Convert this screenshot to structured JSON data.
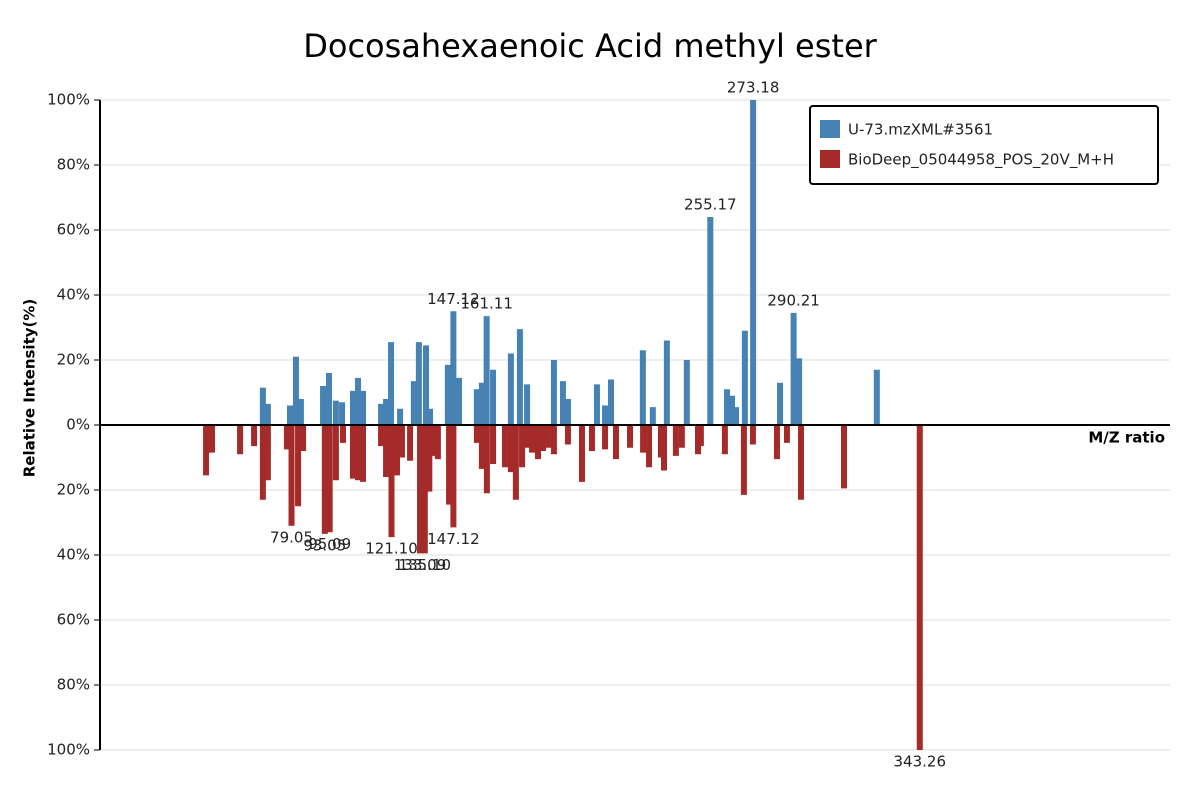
{
  "chart_data": {
    "type": "mirror_bar",
    "title": "Docosahexaenoic Acid methyl ester",
    "y_label": "Relative Intensity(%)",
    "x_label": "M/Z ratio",
    "xlim": [
      -1.5,
      448.5
    ],
    "ylim": [
      -100,
      100
    ],
    "yticks": [
      {
        "value": 100,
        "label": "100%"
      },
      {
        "value": 80,
        "label": "80%"
      },
      {
        "value": 60,
        "label": "60%"
      },
      {
        "value": 40,
        "label": "40%"
      },
      {
        "value": 20,
        "label": "20%"
      },
      {
        "value": 0,
        "label": "0%"
      },
      {
        "value": -20,
        "label": "20%"
      },
      {
        "value": -40,
        "label": "40%"
      },
      {
        "value": -60,
        "label": "60%"
      },
      {
        "value": -80,
        "label": "80%"
      },
      {
        "value": -100,
        "label": "100%"
      }
    ],
    "grid": true,
    "legend": "top-right",
    "series": [
      {
        "name": "U-73.mzXML#3561",
        "color": "#4682b4",
        "direction": "up",
        "x": [
          67.0,
          69.1,
          78.4,
          80.9,
          83.0,
          92.3,
          94.8,
          97.7,
          100.3,
          104.9,
          107.0,
          109.1,
          116.7,
          118.8,
          120.9,
          124.7,
          130.5,
          132.6,
          135.6,
          137.3,
          144.8,
          147.12,
          149.5,
          157.0,
          159.1,
          161.11,
          163.8,
          171.3,
          175.1,
          178.1,
          189.4,
          193.2,
          195.3,
          207.5,
          210.9,
          213.4,
          226.8,
          231.0,
          236.9,
          245.3,
          255.17,
          262.2,
          264.3,
          266.0,
          269.7,
          273.18,
          284.5,
          290.21,
          292.5,
          325.2
        ],
        "values": [
          11.5,
          6.5,
          6,
          21,
          8,
          12,
          16,
          7.5,
          7,
          10.5,
          14.5,
          10.5,
          6.5,
          8,
          25.5,
          5,
          13.5,
          25.5,
          24.5,
          5,
          18.5,
          35,
          14.5,
          11,
          13,
          33.5,
          17,
          22,
          29.5,
          12.5,
          20,
          13.5,
          8,
          12.5,
          6,
          14,
          23,
          5.5,
          26,
          20,
          64,
          11,
          9,
          5.5,
          29,
          100,
          13,
          34.5,
          20.5,
          17
        ],
        "x_labels": [
          null,
          null,
          null,
          null,
          null,
          null,
          null,
          null,
          null,
          null,
          null,
          null,
          null,
          null,
          null,
          null,
          null,
          null,
          null,
          null,
          null,
          "147.12",
          null,
          null,
          null,
          "161.11",
          null,
          null,
          null,
          null,
          null,
          null,
          null,
          null,
          null,
          null,
          null,
          null,
          null,
          null,
          "255.17",
          null,
          null,
          null,
          null,
          "273.18",
          null,
          "290.21",
          null,
          null
        ]
      },
      {
        "name": "BioDeep_05044958_POS_20V_M+H",
        "color": "#a52a2a",
        "direction": "down",
        "x": [
          43.1,
          45.6,
          57.4,
          63.3,
          67.0,
          69.1,
          77.1,
          79.05,
          81.8,
          83.9,
          93.05,
          94.1,
          95.09,
          97.7,
          100.7,
          104.9,
          107.0,
          109.1,
          116.7,
          118.8,
          121.1,
          123.4,
          125.5,
          128.9,
          133.09,
          135.1,
          137.0,
          138.5,
          140.6,
          145.3,
          147.12,
          157.0,
          159.1,
          161.2,
          163.8,
          168.8,
          171.3,
          173.4,
          176.0,
          178.1,
          180.2,
          182.7,
          184.8,
          186.9,
          189.4,
          195.3,
          201.2,
          205.4,
          210.9,
          215.5,
          221.4,
          226.9,
          229.4,
          234.4,
          235.7,
          240.7,
          243.2,
          250.0,
          251.2,
          261.3,
          269.3,
          273.1,
          283.2,
          287.4,
          293.3,
          311.4,
          343.26
        ],
        "values": [
          15.5,
          8.5,
          9,
          6.5,
          23,
          17,
          7.5,
          31,
          25,
          8,
          33.5,
          25,
          33,
          17,
          5.5,
          16.5,
          17,
          17.5,
          6.5,
          16,
          34.5,
          15.5,
          10,
          11,
          39.5,
          39.5,
          20.5,
          9.5,
          10.5,
          24.5,
          31.5,
          5.5,
          13.5,
          21,
          12,
          13,
          14.5,
          23,
          13,
          7,
          8.5,
          10.5,
          8,
          7,
          9,
          6,
          17.5,
          8,
          7.5,
          10.5,
          7,
          8.5,
          13,
          10,
          14,
          9.5,
          7,
          9,
          6.5,
          9,
          21.5,
          6,
          10.5,
          5.5,
          23,
          19.5,
          100
        ],
        "x_labels": [
          null,
          null,
          null,
          null,
          null,
          null,
          null,
          "79.05",
          null,
          null,
          "93.05",
          null,
          "95.09",
          null,
          null,
          null,
          null,
          null,
          null,
          null,
          "121.10",
          null,
          null,
          null,
          "133.09",
          "135.10",
          null,
          null,
          null,
          null,
          "147.12",
          null,
          null,
          null,
          null,
          null,
          null,
          null,
          null,
          null,
          null,
          null,
          null,
          null,
          null,
          null,
          null,
          null,
          null,
          null,
          null,
          null,
          null,
          null,
          null,
          null,
          null,
          null,
          null,
          null,
          null,
          null,
          null,
          null,
          null,
          null,
          "343.26"
        ]
      }
    ]
  }
}
